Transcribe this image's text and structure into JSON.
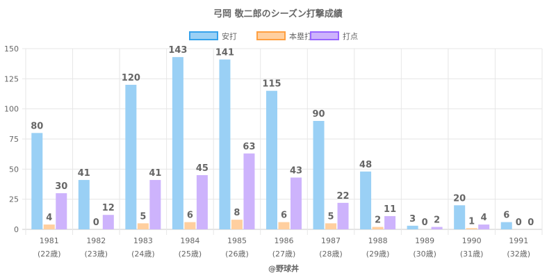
{
  "chart_data": {
    "type": "bar",
    "title": "弓岡 敬二郎のシーズン打撃成績",
    "categories": [
      "1981",
      "1982",
      "1983",
      "1984",
      "1985",
      "1986",
      "1987",
      "1988",
      "1989",
      "1990",
      "1991"
    ],
    "category_sublabels": [
      "(22歳)",
      "(23歳)",
      "(24歳)",
      "(25歳)",
      "(26歳)",
      "(27歳)",
      "(28歳)",
      "(29歳)",
      "(30歳)",
      "(31歳)",
      "(32歳)"
    ],
    "series": [
      {
        "name": "安打",
        "color": "#9ad0f5",
        "border": "#36a2eb",
        "values": [
          80,
          41,
          120,
          143,
          141,
          115,
          90,
          48,
          3,
          20,
          6
        ]
      },
      {
        "name": "本塁打",
        "color": "#ffcf9f",
        "border": "#ff9f40",
        "values": [
          4,
          0,
          5,
          6,
          8,
          6,
          5,
          2,
          0,
          1,
          0
        ]
      },
      {
        "name": "打点",
        "color": "#cdb3fc",
        "border": "#9966ff",
        "values": [
          30,
          12,
          41,
          45,
          63,
          43,
          22,
          11,
          2,
          4,
          0
        ]
      }
    ],
    "ylim": [
      0,
      150
    ],
    "yticks": [
      0,
      25,
      50,
      75,
      100,
      125,
      150
    ],
    "xlabel": "",
    "ylabel": "",
    "grid": true,
    "legend": "top-center",
    "credit": "@野球丼"
  }
}
